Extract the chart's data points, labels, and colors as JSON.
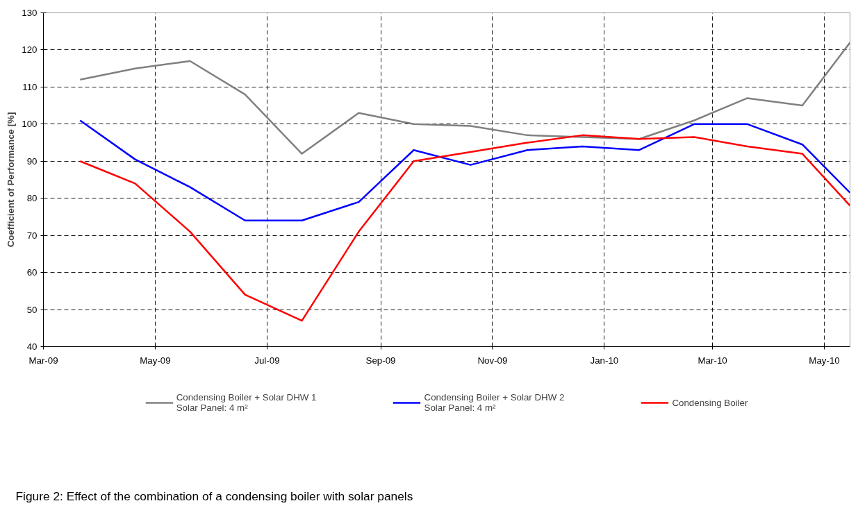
{
  "chart_data": {
    "type": "line",
    "title": "Figure 2: Effect of the combination of a condensing boiler with solar panels",
    "ylabel": "Coefficient of Performance [%]",
    "x": [
      "2009-03-21",
      "2009-04-20",
      "2009-05-20",
      "2009-06-19",
      "2009-07-20",
      "2009-08-20",
      "2009-09-19",
      "2009-10-20",
      "2009-11-20",
      "2009-12-20",
      "2010-01-20",
      "2010-02-19",
      "2010-03-20",
      "2010-04-19",
      "2010-05-15"
    ],
    "series": [
      {
        "name": "Condensing Boiler + Solar DHW 1\nSolar Panel: 4 m²",
        "color": "#808080",
        "values": [
          112,
          115,
          117,
          108,
          92,
          103,
          100,
          99.5,
          97,
          96.5,
          96,
          101,
          107,
          105,
          122
        ]
      },
      {
        "name": "Condensing Boiler + Solar DHW 2\nSolar Panel: 4 m²",
        "color": "#0000ff",
        "values": [
          101,
          90.5,
          83,
          74,
          74,
          79,
          93,
          89,
          93,
          94,
          93,
          100,
          100,
          94.5,
          81.5
        ]
      },
      {
        "name": "Condensing Boiler",
        "color": "#ff0000",
        "values": [
          90,
          84,
          71,
          54,
          47,
          71,
          90,
          92.5,
          95,
          97,
          96,
          96.5,
          94,
          92,
          78
        ]
      }
    ],
    "xlim": [
      "2009-03-01",
      "2010-05-15"
    ],
    "xticks": [
      {
        "value": "2009-03-01",
        "label": "Mar-09"
      },
      {
        "value": "2009-05-01",
        "label": "May-09"
      },
      {
        "value": "2009-07-01",
        "label": "Jul-09"
      },
      {
        "value": "2009-09-01",
        "label": "Sep-09"
      },
      {
        "value": "2009-11-01",
        "label": "Nov-09"
      },
      {
        "value": "2010-01-01",
        "label": "Jan-10"
      },
      {
        "value": "2010-03-01",
        "label": "Mar-10"
      },
      {
        "value": "2010-05-01",
        "label": "May-10"
      }
    ],
    "ylim": [
      40,
      130
    ],
    "yticks": [
      40,
      50,
      60,
      70,
      80,
      90,
      100,
      110,
      120,
      130
    ],
    "grid": true,
    "legend": "bottom",
    "marker": "none",
    "line_style": "solid"
  }
}
